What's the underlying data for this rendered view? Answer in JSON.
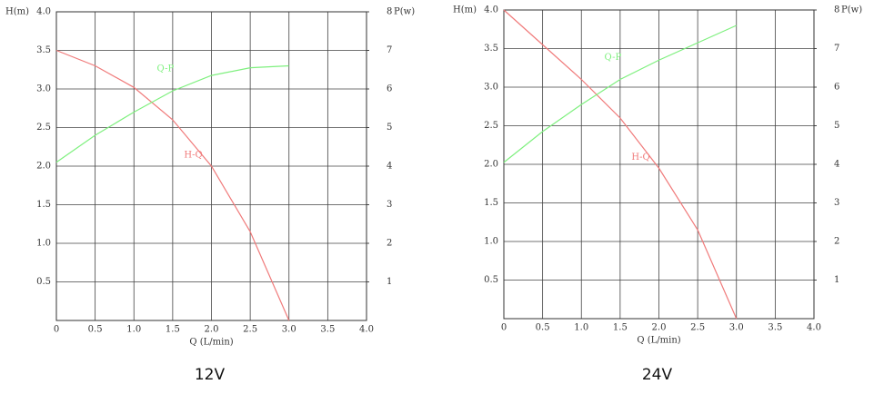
{
  "chart_data": [
    {
      "type": "line",
      "title": "12V",
      "xlabel": "Q (L/min)",
      "ylabel": "H(m)",
      "y2label": "P(w)",
      "x": [
        0,
        0.5,
        1.0,
        1.5,
        2.0,
        2.5,
        3.0
      ],
      "series": [
        {
          "name": "H-Q",
          "color": "#f07a7a",
          "values": [
            3.5,
            3.3,
            3.02,
            2.6,
            2.0,
            1.15,
            0
          ]
        },
        {
          "name": "Q-P",
          "color": "#7ef07e",
          "axis": "y2",
          "values": [
            4.1,
            4.8,
            5.4,
            5.95,
            6.35,
            6.55,
            6.6
          ]
        }
      ],
      "xlim": [
        0,
        4
      ],
      "ylim": [
        0,
        4
      ],
      "y2lim": [
        0,
        8
      ],
      "xticks": [
        0,
        0.5,
        {
          "value": 1,
          "label": "1.0"
        },
        1.5,
        {
          "value": 2,
          "label": "2.0"
        },
        2.5,
        {
          "value": 3,
          "label": "3.0"
        },
        3.5,
        {
          "value": 4,
          "label": "4.0"
        }
      ],
      "yticks": [
        0.5,
        {
          "value": 1,
          "label": "1.0"
        },
        1.5,
        {
          "value": 2,
          "label": "2.0"
        },
        2.5,
        {
          "value": 3,
          "label": "3.0"
        },
        3.5,
        {
          "value": 4,
          "label": "4.0"
        }
      ],
      "y2ticks": [
        1,
        2,
        3,
        4,
        5,
        6,
        7,
        8
      ],
      "grid": true
    },
    {
      "type": "line",
      "title": "24V",
      "xlabel": "Q (L/min)",
      "ylabel": "H(m)",
      "y2label": "P(w)",
      "x": [
        0,
        0.5,
        1.0,
        1.5,
        2.0,
        2.5,
        3.0
      ],
      "series": [
        {
          "name": "H-Q",
          "color": "#f07a7a",
          "values": [
            4.0,
            3.55,
            3.1,
            2.6,
            1.95,
            1.15,
            0
          ]
        },
        {
          "name": "Q-P",
          "color": "#7ef07e",
          "axis": "y2",
          "values": [
            4.05,
            4.85,
            5.55,
            6.2,
            6.7,
            7.15,
            7.6
          ]
        }
      ],
      "xlim": [
        0,
        4
      ],
      "ylim": [
        0,
        4
      ],
      "y2lim": [
        0,
        8
      ],
      "xticks": [
        0,
        0.5,
        {
          "value": 1,
          "label": "1.0"
        },
        1.5,
        {
          "value": 2,
          "label": "2.0"
        },
        2.5,
        {
          "value": 3,
          "label": "3.0"
        },
        3.5,
        {
          "value": 4,
          "label": "4.0"
        }
      ],
      "yticks": [
        0.5,
        {
          "value": 1,
          "label": "1.0"
        },
        1.5,
        {
          "value": 2,
          "label": "2.0"
        },
        2.5,
        {
          "value": 3,
          "label": "3.0"
        },
        3.5,
        {
          "value": 4,
          "label": "4.0"
        }
      ],
      "y2ticks": [
        1,
        2,
        3,
        4,
        5,
        6,
        7,
        8
      ],
      "grid": true
    }
  ]
}
